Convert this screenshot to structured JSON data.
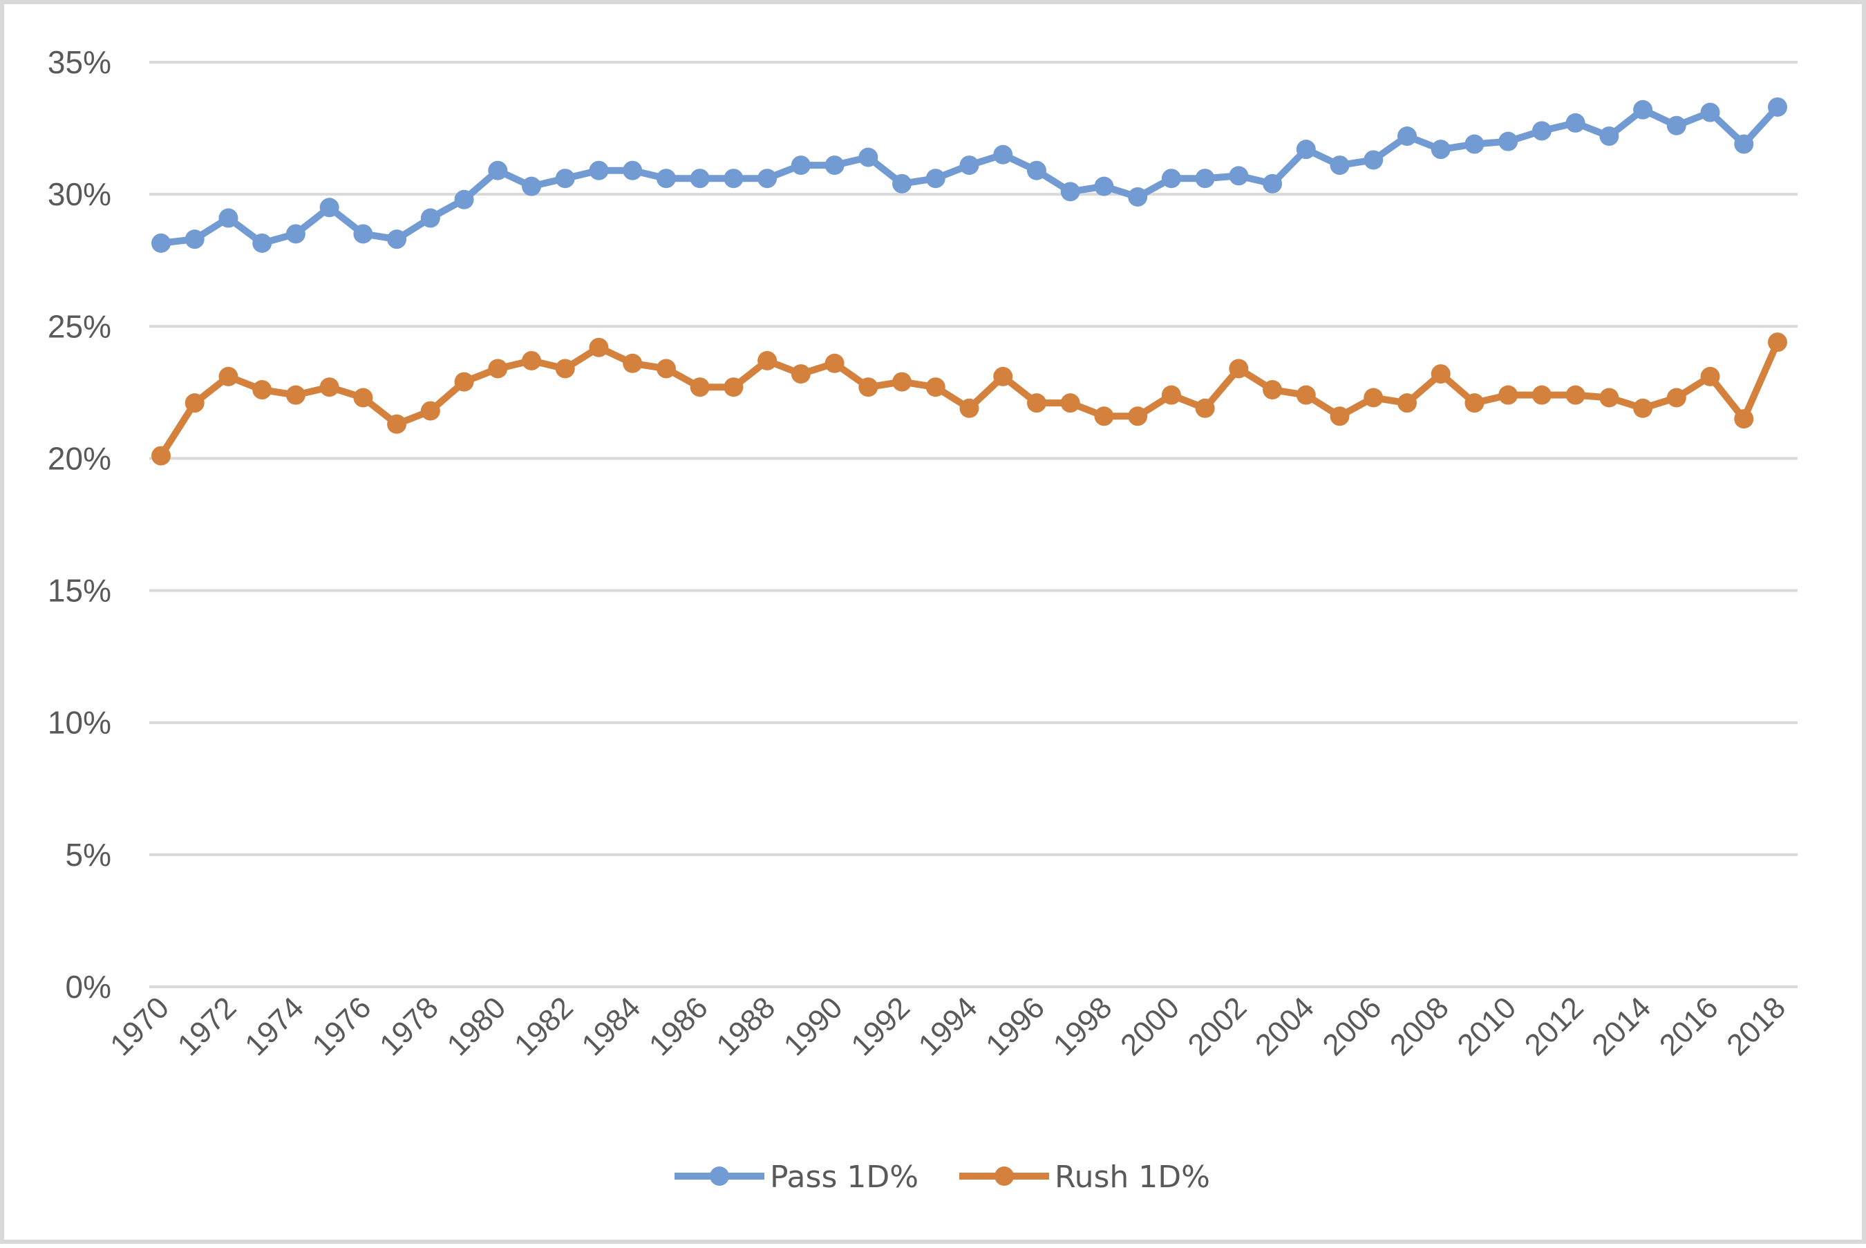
{
  "chart_data": {
    "type": "line",
    "title": "",
    "xlabel": "",
    "ylabel": "",
    "ylim": [
      0,
      35
    ],
    "y_ticks": [
      "0%",
      "5%",
      "10%",
      "15%",
      "20%",
      "25%",
      "30%",
      "35%"
    ],
    "y_tick_values": [
      0,
      5,
      10,
      15,
      20,
      25,
      30,
      35
    ],
    "grid": true,
    "legend_position": "bottom",
    "x": [
      1970,
      1971,
      1972,
      1973,
      1974,
      1975,
      1976,
      1977,
      1978,
      1979,
      1980,
      1981,
      1982,
      1983,
      1984,
      1985,
      1986,
      1987,
      1988,
      1989,
      1990,
      1991,
      1992,
      1993,
      1994,
      1995,
      1996,
      1997,
      1998,
      1999,
      2000,
      2001,
      2002,
      2003,
      2004,
      2005,
      2006,
      2007,
      2008,
      2009,
      2010,
      2011,
      2012,
      2013,
      2014,
      2015,
      2016,
      2017,
      2018
    ],
    "x_tick_labels": [
      "1970",
      "1972",
      "1974",
      "1976",
      "1978",
      "1980",
      "1982",
      "1984",
      "1986",
      "1988",
      "1990",
      "1992",
      "1994",
      "1996",
      "1998",
      "2000",
      "2002",
      "2004",
      "2006",
      "2008",
      "2010",
      "2012",
      "2014",
      "2016",
      "2018"
    ],
    "series": [
      {
        "name": "Pass 1D%",
        "color": "#729bd3",
        "values": [
          28.15,
          28.3,
          29.1,
          28.15,
          28.5,
          29.5,
          28.5,
          28.3,
          29.1,
          29.8,
          30.9,
          30.3,
          30.6,
          30.9,
          30.9,
          30.6,
          30.6,
          30.6,
          30.6,
          31.1,
          31.1,
          31.4,
          30.4,
          30.6,
          31.1,
          31.5,
          30.9,
          30.1,
          30.3,
          29.9,
          30.6,
          30.6,
          30.7,
          30.4,
          31.7,
          31.1,
          31.3,
          32.2,
          31.7,
          31.9,
          32.0,
          32.4,
          32.7,
          32.2,
          33.2,
          32.6,
          33.1,
          31.9,
          33.3
        ]
      },
      {
        "name": "Rush 1D%",
        "color": "#d5813e",
        "values": [
          20.1,
          22.1,
          23.1,
          22.6,
          22.4,
          22.7,
          22.3,
          21.3,
          21.8,
          22.9,
          23.4,
          23.7,
          23.4,
          24.2,
          23.6,
          23.4,
          22.7,
          22.7,
          23.7,
          23.2,
          23.6,
          22.7,
          22.9,
          22.7,
          21.9,
          23.1,
          22.1,
          22.1,
          21.6,
          21.6,
          22.4,
          21.9,
          23.4,
          22.6,
          22.4,
          21.6,
          22.3,
          22.1,
          23.2,
          22.1,
          22.4,
          22.4,
          22.4,
          22.3,
          21.9,
          22.3,
          23.1,
          21.5,
          24.4
        ]
      }
    ]
  }
}
